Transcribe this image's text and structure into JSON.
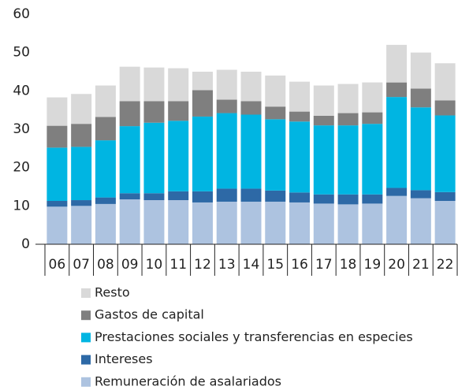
{
  "chart_data": {
    "type": "stacked-bar",
    "categories": [
      "06",
      "07",
      "08",
      "09",
      "10",
      "11",
      "12",
      "13",
      "14",
      "15",
      "16",
      "17",
      "18",
      "19",
      "20",
      "21",
      "22"
    ],
    "series": [
      {
        "name": "Remuneración de asalariados",
        "color": "#adc3e0",
        "values": [
          9.8,
          10,
          10.5,
          11.7,
          11.5,
          11.5,
          10.9,
          11.1,
          11.1,
          11.1,
          10.9,
          10.6,
          10.4,
          10.6,
          12.6,
          12,
          11.3
        ]
      },
      {
        "name": "Intereses",
        "color": "#2d69a6",
        "values": [
          1.5,
          1.5,
          1.7,
          1.6,
          1.8,
          2.3,
          2.9,
          3.4,
          3.4,
          2.9,
          2.6,
          2.4,
          2.6,
          2.4,
          2.1,
          2.1,
          2.3
        ]
      },
      {
        "name": "Prestaciones sociales y transferencias en especies",
        "color": "#00b5e2",
        "values": [
          13.9,
          13.9,
          14.9,
          17.5,
          18.4,
          18.4,
          19.5,
          19.7,
          19.3,
          18.6,
          18.5,
          18,
          18,
          18.4,
          23.7,
          21.6,
          20
        ]
      },
      {
        "name": "Gastos de capital",
        "color": "#7f7f7f",
        "values": [
          5.7,
          6,
          6.1,
          6.5,
          5.6,
          5.1,
          6.9,
          3.5,
          3.5,
          3.3,
          2.6,
          2.5,
          3.2,
          3,
          3.8,
          4.9,
          3.9
        ]
      },
      {
        "name": "Resto",
        "color": "#d9d9d9",
        "values": [
          7.4,
          7.8,
          8.2,
          9,
          8.8,
          8.6,
          4.8,
          7.8,
          7.7,
          8.1,
          7.8,
          7.9,
          7.6,
          7.8,
          9.8,
          9.4,
          9.7
        ]
      }
    ],
    "ylim": [
      0,
      60
    ],
    "yticks": [
      0,
      10,
      20,
      30,
      40,
      50,
      60
    ]
  }
}
